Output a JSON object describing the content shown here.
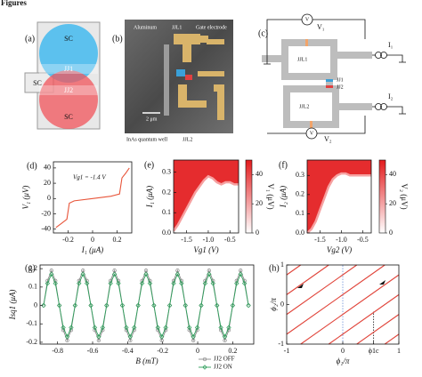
{
  "figure_title": "Figures",
  "panels": [
    "(a)",
    "(b)",
    "(c)",
    "(d)",
    "(e)",
    "(f)",
    "(g)",
    "(h)"
  ],
  "schematic": {
    "sc_top": "SC",
    "sc_left": "SC",
    "sc_bottom": "SC",
    "jj1": "JJ1",
    "jj2": "JJ2"
  },
  "micrograph": {
    "aluminum": "Aluminum",
    "jjl1": "JJL1",
    "gate": "Gate electrode",
    "scale": "2 μm",
    "well": "InAs quantum well",
    "jjl2": "JJL2"
  },
  "circuit": {
    "meter_top": "V",
    "v1": "V₁",
    "i1": "I₁",
    "jjl1": "JJL1",
    "jj1": "JJ1",
    "jj2": "JJ2",
    "jjl2": "JJL2",
    "i2": "I₂",
    "meter_bottom": "V",
    "v2": "V₂"
  },
  "chart_data": [
    {
      "type": "line",
      "xlabel": "I₁ (μA)",
      "ylabel": "V₁ (μV)",
      "annotation": "Vg1 = -1.4 V",
      "color": "#e8553a",
      "x": [
        -0.3,
        -0.25,
        -0.21,
        -0.19,
        -0.15,
        0,
        0.15,
        0.22,
        0.24,
        0.27,
        0.3
      ],
      "values": [
        -38,
        -32,
        -27,
        -6,
        -3,
        0,
        3,
        6,
        27,
        33,
        40
      ],
      "xlim": [
        -0.32,
        0.32
      ],
      "ylim": [
        -45,
        48
      ],
      "xticks": [
        -0.2,
        0,
        0.2
      ],
      "yticks": [
        -40,
        -20,
        0,
        20,
        40
      ]
    },
    {
      "type": "heatmap",
      "xlabel": "Vg1 (V)",
      "ylabel": "I₁ (μA)",
      "colors": [
        "#ffffff",
        "#e31a1c"
      ],
      "x": [
        -1.8,
        -1.7,
        -1.6,
        -1.5,
        -1.4,
        -1.3,
        -1.2,
        -1.1,
        -1.0,
        -0.9,
        -0.8,
        -0.7,
        -0.6,
        -0.5,
        -0.4,
        -0.3
      ],
      "values": [
        0.01,
        0.04,
        0.08,
        0.12,
        0.16,
        0.2,
        0.23,
        0.26,
        0.28,
        0.27,
        0.25,
        0.24,
        0.25,
        0.25,
        0.24,
        0.24
      ],
      "xlim": [
        -1.8,
        -0.3
      ],
      "ylim": [
        0,
        0.36
      ],
      "xticks": [
        -1.5,
        {
          "value": -1.0,
          "label": "-1.0"
        },
        -0.5
      ],
      "yticks": [
        {
          "value": 0,
          "label": "0.0"
        },
        0.1,
        0.2,
        0.3
      ],
      "colorbar": {
        "label": "V₁ (μV)",
        "lim": [
          0,
          50
        ],
        "ticks": [
          0,
          20,
          40
        ]
      }
    },
    {
      "type": "heatmap",
      "xlabel": "Vg2 (V)",
      "ylabel": "I₂ (μA)",
      "colors": [
        "#ffffff",
        "#e31a1c"
      ],
      "x": [
        -1.8,
        -1.7,
        -1.6,
        -1.5,
        -1.4,
        -1.3,
        -1.2,
        -1.1,
        -1.0,
        -0.9,
        -0.8,
        -0.7,
        -0.6,
        -0.5,
        -0.4,
        -0.3
      ],
      "values": [
        0.0,
        0.02,
        0.06,
        0.12,
        0.18,
        0.24,
        0.28,
        0.3,
        0.31,
        0.31,
        0.3,
        0.3,
        0.3,
        0.3,
        0.3,
        0.3
      ],
      "xlim": [
        -1.8,
        -0.3
      ],
      "ylim": [
        0,
        0.38
      ],
      "xticks": [
        -1.5,
        {
          "value": -1.0,
          "label": "-1.0"
        },
        -0.5
      ],
      "yticks": [
        {
          "value": 0,
          "label": "0.0"
        },
        0.1,
        0.2,
        0.3
      ],
      "colorbar": {
        "label": "V₂ (μV)",
        "lim": [
          0,
          50
        ],
        "ticks": [
          0,
          20,
          40
        ]
      }
    },
    {
      "type": "line",
      "xlabel": "B (mT)",
      "ylabel": "Isq1 (μA)",
      "markers": true,
      "x": [
        -0.88,
        -0.8575,
        -0.835,
        -0.8125,
        -0.79,
        -0.7675,
        -0.745,
        -0.7225,
        -0.7,
        -0.6775,
        -0.655,
        -0.6325,
        -0.61,
        -0.5875,
        -0.565,
        -0.5425,
        -0.52,
        -0.4975,
        -0.475,
        -0.4525,
        -0.43,
        -0.4075,
        -0.385,
        -0.3625,
        -0.34,
        -0.3175,
        -0.295,
        -0.2725,
        -0.25,
        -0.2275,
        -0.205,
        -0.1825,
        -0.16,
        -0.1375,
        -0.115,
        -0.0925,
        -0.07,
        -0.0475,
        -0.025,
        -0.0025,
        0.02,
        0.0425,
        0.065,
        0.0875,
        0.11,
        0.1325,
        0.155,
        0.1775,
        0.2,
        0.2225,
        0.245,
        0.2675,
        0.29
      ],
      "series": [
        {
          "name": "JJ2 OFF",
          "color": "#888888",
          "marker": "circle",
          "values": [
            0,
            0.134,
            0.19,
            0.134,
            0,
            -0.134,
            -0.19,
            -0.134,
            0,
            0.134,
            0.19,
            0.134,
            0,
            -0.134,
            -0.19,
            -0.134,
            0,
            0.134,
            0.19,
            0.134,
            0,
            -0.134,
            -0.19,
            -0.134,
            0,
            0.134,
            0.19,
            0.134,
            0,
            -0.134,
            -0.19,
            -0.134,
            0,
            0.134,
            0.19,
            0.134,
            0,
            -0.134,
            -0.19,
            -0.134,
            0,
            0.134,
            0.19,
            0.134,
            0,
            -0.134,
            -0.19,
            -0.134,
            0,
            0.134,
            0.19,
            0.134,
            0
          ]
        },
        {
          "name": "JJ2 ON",
          "color": "#2e9e5b",
          "marker": "diamond",
          "values": [
            0,
            0.12,
            0.17,
            0.12,
            0,
            -0.12,
            -0.17,
            -0.12,
            0,
            0.12,
            0.17,
            0.12,
            0,
            -0.12,
            -0.17,
            -0.12,
            0,
            0.12,
            0.17,
            0.12,
            0,
            -0.12,
            -0.17,
            -0.12,
            0,
            0.12,
            0.17,
            0.12,
            0,
            -0.12,
            -0.17,
            -0.12,
            0,
            0.12,
            0.17,
            0.12,
            0,
            -0.12,
            -0.17,
            -0.12,
            0,
            0.12,
            0.17,
            0.12,
            0,
            -0.12,
            -0.17,
            -0.12,
            0,
            0.12,
            0.17,
            0.12,
            0
          ]
        }
      ],
      "xlim": [
        -0.9,
        0.32
      ],
      "ylim": [
        -0.21,
        0.22
      ],
      "xticks": [
        -0.8,
        -0.6,
        -0.4,
        -0.2,
        0,
        0.2
      ],
      "yticks": [
        -0.2,
        -0.1,
        0,
        0.1,
        0.2
      ]
    },
    {
      "type": "line",
      "xlabel": "ϕ₁/π",
      "ylabel": "ϕ₂/π",
      "color": "#e0443a",
      "series": [
        {
          "x": [
            -1,
            -0.75
          ],
          "values": [
            0.75,
            1
          ]
        },
        {
          "x": [
            -1,
            -0.25
          ],
          "values": [
            0.25,
            1
          ]
        },
        {
          "x": [
            -1,
            0.25
          ],
          "values": [
            -0.25,
            1
          ]
        },
        {
          "x": [
            -1,
            0.75
          ],
          "values": [
            -0.75,
            1
          ]
        },
        {
          "x": [
            -0.75,
            1
          ],
          "values": [
            -1,
            0.75
          ]
        },
        {
          "x": [
            -0.25,
            1
          ],
          "values": [
            -1,
            0.25
          ]
        },
        {
          "x": [
            0.25,
            1
          ],
          "values": [
            -1,
            -0.25
          ]
        },
        {
          "x": [
            0.75,
            1
          ],
          "values": [
            -1,
            -0.75
          ]
        }
      ],
      "xlim": [
        -1,
        1
      ],
      "ylim": [
        -1,
        1
      ],
      "xticks": [
        -1,
        0,
        {
          "value": 0.55,
          "label": "ϕ1c"
        },
        1
      ],
      "yticks": [
        -1,
        0,
        1
      ]
    }
  ]
}
